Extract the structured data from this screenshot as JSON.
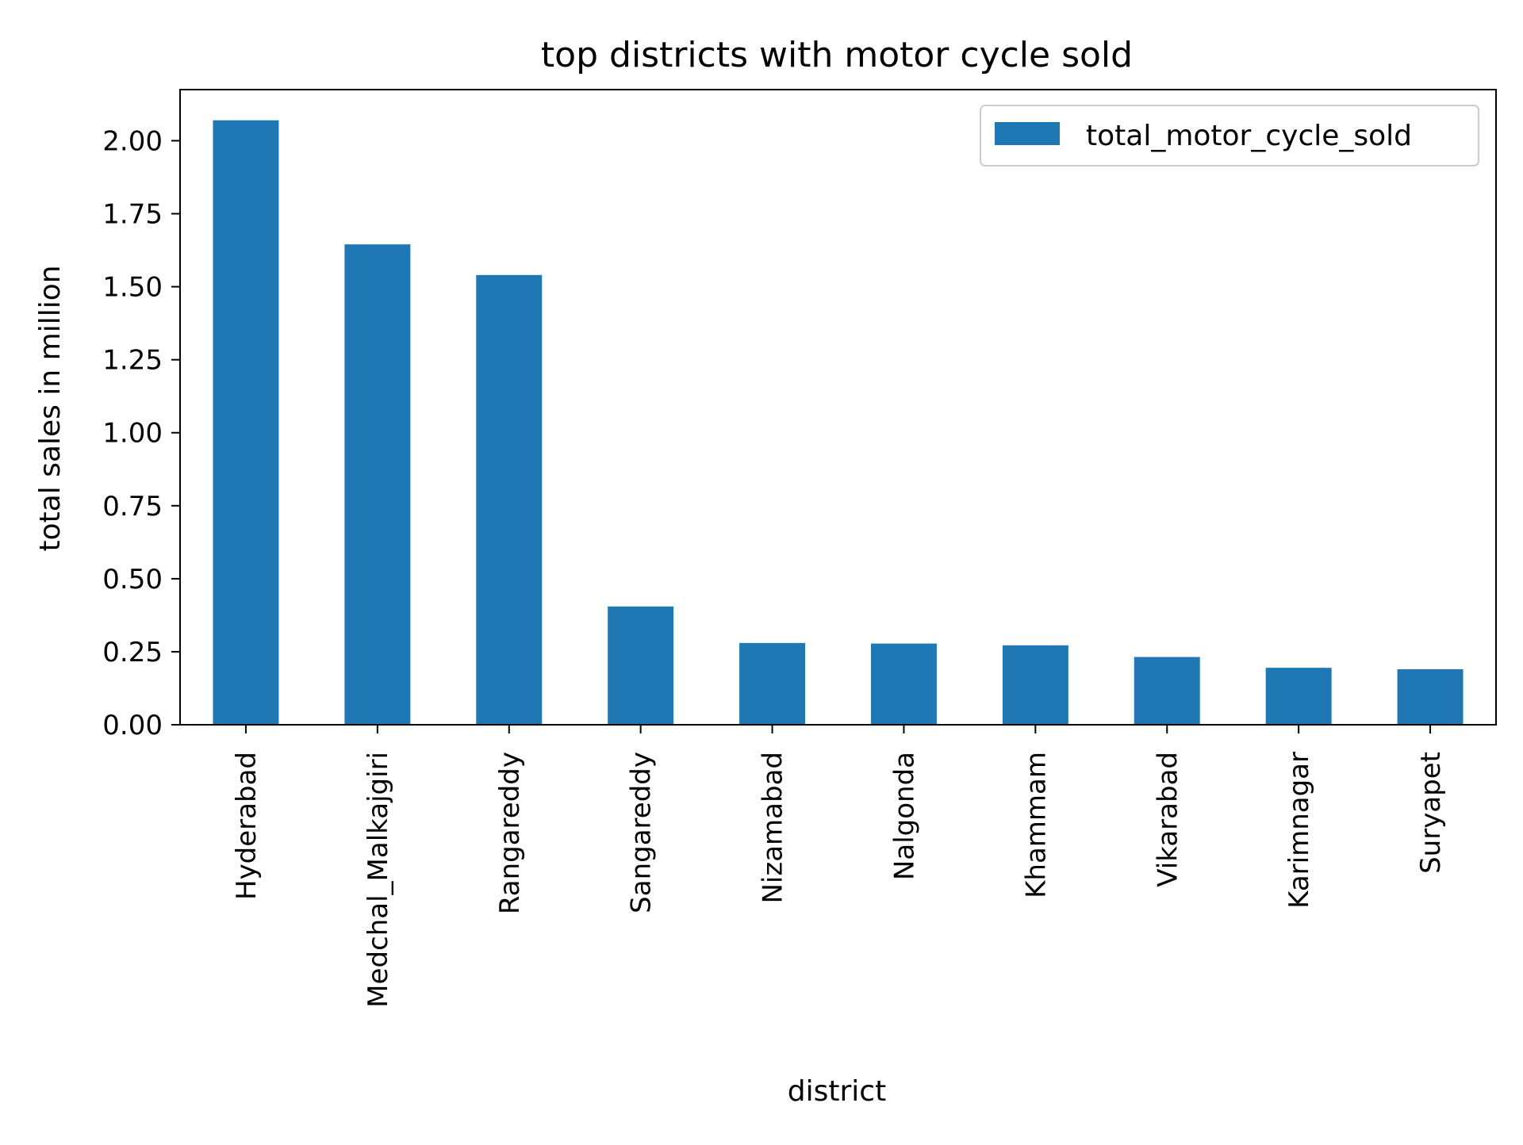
{
  "chart_data": {
    "type": "bar",
    "title": "top districts with motor cycle sold",
    "xlabel": "district",
    "ylabel": "total sales in million",
    "categories": [
      "Hyderabad",
      "Medchal_Malkajgiri",
      "Rangareddy",
      "Sangareddy",
      "Nizamabad",
      "Nalgonda",
      "Khammam",
      "Vikarabad",
      "Karimnagar",
      "Suryapet"
    ],
    "series": [
      {
        "name": "total_motor_cycle_sold",
        "color": "#1f77b4",
        "values": [
          2.07,
          1.645,
          1.54,
          0.405,
          0.28,
          0.278,
          0.272,
          0.232,
          0.195,
          0.19
        ]
      }
    ],
    "ylim": [
      0,
      2.175
    ],
    "yticks": [
      0.0,
      0.25,
      0.5,
      0.75,
      1.0,
      1.25,
      1.5,
      1.75,
      2.0
    ],
    "ytick_labels": [
      "0.00",
      "0.25",
      "0.50",
      "0.75",
      "1.00",
      "1.25",
      "1.50",
      "1.75",
      "2.00"
    ],
    "legend": {
      "placement": "top-right",
      "entries": [
        "total_motor_cycle_sold"
      ]
    },
    "grid": false
  }
}
